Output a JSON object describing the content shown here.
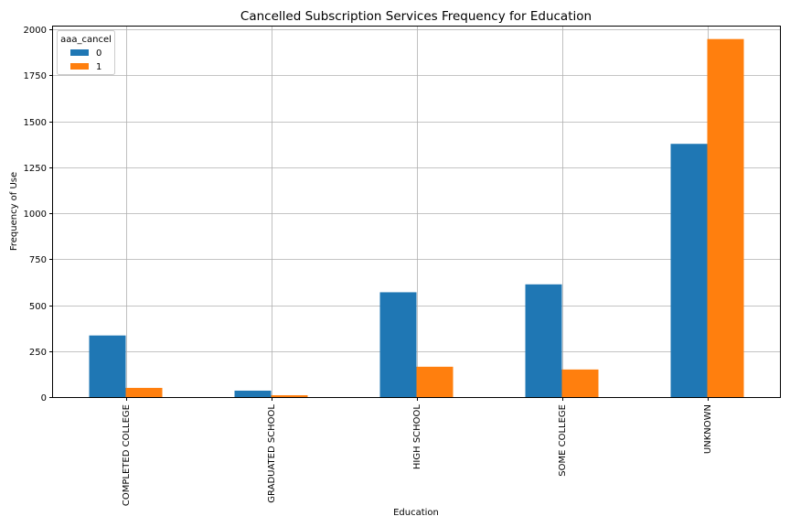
{
  "chart_data": {
    "type": "bar",
    "title": "Cancelled Subscription Services Frequency for Education",
    "xlabel": "Education",
    "ylabel": "Frequency of Use",
    "categories": [
      "COMPLETED COLLEGE",
      "GRADUATED SCHOOL",
      "HIGH SCHOOL",
      "SOME COLLEGE",
      "UNKNOWN"
    ],
    "series": [
      {
        "name": "0",
        "values": [
          335,
          35,
          570,
          613,
          1377
        ],
        "color": "#1f77b4"
      },
      {
        "name": "1",
        "values": [
          50,
          10,
          165,
          150,
          1947
        ],
        "color": "#ff7f0e"
      }
    ],
    "ylim": [
      0,
      2020
    ],
    "yticks": [
      0,
      250,
      500,
      750,
      1000,
      1250,
      1500,
      1750,
      2000
    ],
    "grid": true,
    "legend": {
      "title": "aaa_cancel",
      "placement": "top-left"
    }
  }
}
